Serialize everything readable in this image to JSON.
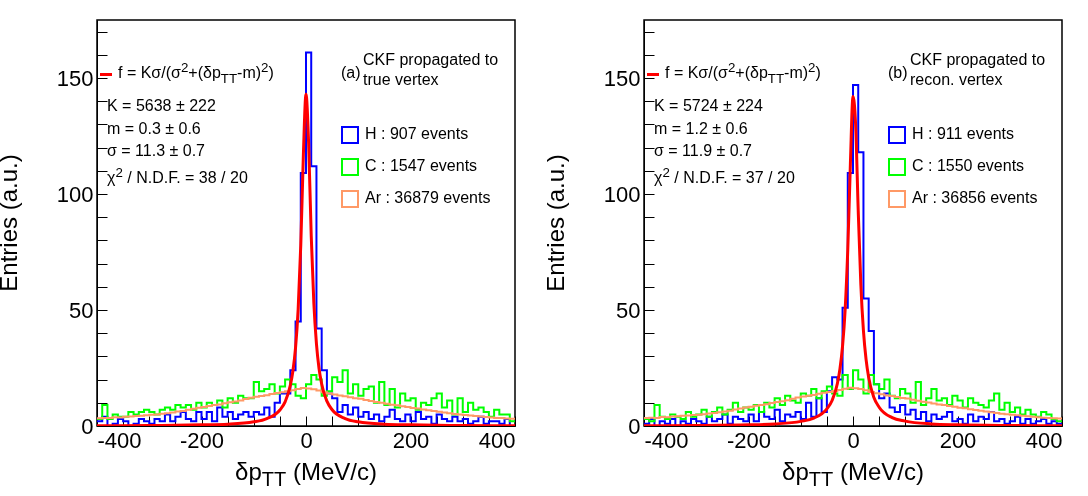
{
  "chart_data": [
    {
      "type": "histogram",
      "xlabel": "δp$_{TT}$ (MeV/c)",
      "ylabel": "Entries (a.u.)",
      "xlim": [
        -400,
        400
      ],
      "ylim": [
        0,
        175
      ],
      "xticks": [
        -400,
        {
          "value": -350,
          "label": null
        },
        {
          "value": -300,
          "label": null
        },
        {
          "value": -250,
          "label": null
        },
        -200,
        {
          "value": -150,
          "label": null
        },
        {
          "value": -100,
          "label": null
        },
        {
          "value": -50,
          "label": null
        },
        0,
        {
          "value": 50,
          "label": null
        },
        {
          "value": 100,
          "label": null
        },
        {
          "value": 150,
          "label": null
        },
        200,
        {
          "value": 250,
          "label": null
        },
        {
          "value": 300,
          "label": null
        },
        {
          "value": 350,
          "label": null
        },
        400
      ],
      "yticks": [
        0,
        {
          "value": 10,
          "label": null
        },
        {
          "value": 20,
          "label": null
        },
        {
          "value": 30,
          "label": null
        },
        {
          "value": 40,
          "label": null
        },
        50,
        {
          "value": 60,
          "label": null
        },
        {
          "value": 70,
          "label": null
        },
        {
          "value": 80,
          "label": null
        },
        {
          "value": 90,
          "label": null
        },
        100,
        {
          "value": 110,
          "label": null
        },
        {
          "value": 120,
          "label": null
        },
        {
          "value": 130,
          "label": null
        },
        {
          "value": 140,
          "label": null
        },
        150,
        {
          "value": 160,
          "label": null
        },
        {
          "value": 170,
          "label": null
        }
      ],
      "bins": [
        -400,
        -390,
        -380,
        -370,
        -360,
        -350,
        -340,
        -330,
        -320,
        -310,
        -300,
        -290,
        -280,
        -270,
        -260,
        -250,
        -240,
        -230,
        -220,
        -210,
        -200,
        -190,
        -180,
        -170,
        -160,
        -150,
        -140,
        -130,
        -120,
        -110,
        -100,
        -90,
        -80,
        -70,
        -60,
        -50,
        -40,
        -30,
        -20,
        -10,
        0,
        10,
        20,
        30,
        40,
        50,
        60,
        70,
        80,
        90,
        100,
        110,
        120,
        130,
        140,
        150,
        160,
        170,
        180,
        190,
        200,
        210,
        220,
        230,
        240,
        250,
        260,
        270,
        280,
        290,
        300,
        310,
        320,
        330,
        340,
        350,
        360,
        370,
        380,
        390,
        400
      ],
      "legend": "top right",
      "annotations": [
        "K = 5638 ± 222",
        "m = 0.3 ± 0.6",
        "σ = 11.3 ± 0.7",
        "χ$^{2}$ / N.D.F. = 38 / 20",
        "(a)",
        "CKF propagated to true vertex"
      ],
      "series": [
        {
          "name": "H : 907 events",
          "color": "#0000ff",
          "values": [
            2,
            4,
            0,
            1,
            3,
            2,
            0,
            1,
            3,
            2,
            1,
            3,
            2,
            5,
            2,
            4,
            6,
            3,
            2,
            6,
            3,
            6,
            2,
            8,
            4,
            6,
            3,
            5,
            6,
            4,
            6,
            5,
            8,
            4,
            10,
            14,
            14,
            24,
            45,
            109,
            161,
            112,
            42,
            24,
            14,
            12,
            6,
            9,
            5,
            8,
            4,
            6,
            3,
            5,
            2,
            4,
            7,
            3,
            2,
            5,
            2,
            6,
            3,
            4,
            1,
            5,
            3,
            2,
            4,
            2,
            3,
            1,
            2,
            4,
            1,
            2,
            2,
            1,
            3,
            0
          ]
        },
        {
          "name": "C : 1547 events",
          "color": "#00ff00",
          "values": [
            3,
            9,
            3,
            5,
            4,
            4,
            6,
            5,
            6,
            7,
            6,
            5,
            7,
            8,
            7,
            9,
            8,
            9,
            7,
            10,
            8,
            10,
            9,
            11,
            8,
            12,
            10,
            13,
            12,
            12,
            19,
            15,
            16,
            18,
            14,
            17,
            20,
            18,
            13,
            12,
            18,
            22,
            20,
            13,
            15,
            21,
            19,
            24,
            14,
            18,
            13,
            16,
            17,
            10,
            19,
            9,
            16,
            8,
            14,
            11,
            12,
            7,
            10,
            9,
            12,
            14,
            8,
            11,
            5,
            12,
            6,
            10,
            7,
            8,
            6,
            4,
            7,
            5,
            5,
            2
          ]
        },
        {
          "name": "Ar : 36879 events",
          "color": "#ff9966",
          "values": [
            3.3,
            3.5,
            3.4,
            3.8,
            3.7,
            4.0,
            4.1,
            4.3,
            4.4,
            4.6,
            4.8,
            5.0,
            5.3,
            5.5,
            5.8,
            6.2,
            6.5,
            7.0,
            7.4,
            7.9,
            8.2,
            8.6,
            9.0,
            9.3,
            9.8,
            10.2,
            10.6,
            11.0,
            11.6,
            12.2,
            12.6,
            12.9,
            13.3,
            13.8,
            14.2,
            14.6,
            15.0,
            15.4,
            16.0,
            16.4,
            16.2,
            15.8,
            15.3,
            14.6,
            14.0,
            13.6,
            13.1,
            12.8,
            12.4,
            12.0,
            11.7,
            11.2,
            10.8,
            10.3,
            10.0,
            9.6,
            9.2,
            8.9,
            8.5,
            8.2,
            7.8,
            7.5,
            7.1,
            6.8,
            6.5,
            6.1,
            5.8,
            5.5,
            5.2,
            5.0,
            4.7,
            4.5,
            4.3,
            4.1,
            3.9,
            3.7,
            3.5,
            3.4,
            3.2,
            3.1
          ]
        },
        {
          "name": "f = Kσ/(σ$^{2}$+(δp$_{TT}$-m)$^{2}$)",
          "type": "line",
          "color": "#ff0000",
          "x": [
            -400,
            -300,
            -200,
            -150,
            -100,
            -75,
            -50,
            -40,
            -30,
            -25,
            -20,
            -15,
            -10,
            -5,
            0,
            5,
            10,
            15,
            20,
            25,
            30,
            40,
            50,
            75,
            100,
            150,
            200,
            300,
            400
          ],
          "values": [
            0.1,
            0.2,
            0.5,
            0.8,
            1.8,
            3.2,
            6.9,
            10.4,
            17.5,
            23.8,
            33.8,
            50.4,
            78,
            117,
            143,
            122,
            82,
            53,
            35.4,
            24.7,
            18.1,
            10.7,
            7,
            3.2,
            1.8,
            0.8,
            0.5,
            0.2,
            0.1
          ]
        }
      ]
    },
    {
      "type": "histogram",
      "xlabel": "δp$_{TT}$ (MeV/c)",
      "ylabel": "Entries (a.u.)",
      "xlim": [
        -400,
        400
      ],
      "ylim": [
        0,
        175
      ],
      "xticks": [
        -400,
        {
          "value": -350,
          "label": null
        },
        {
          "value": -300,
          "label": null
        },
        {
          "value": -250,
          "label": null
        },
        -200,
        {
          "value": -150,
          "label": null
        },
        {
          "value": -100,
          "label": null
        },
        {
          "value": -50,
          "label": null
        },
        0,
        {
          "value": 50,
          "label": null
        },
        {
          "value": 100,
          "label": null
        },
        {
          "value": 150,
          "label": null
        },
        200,
        {
          "value": 250,
          "label": null
        },
        {
          "value": 300,
          "label": null
        },
        {
          "value": 350,
          "label": null
        },
        400
      ],
      "yticks": [
        0,
        {
          "value": 10,
          "label": null
        },
        {
          "value": 20,
          "label": null
        },
        {
          "value": 30,
          "label": null
        },
        {
          "value": 40,
          "label": null
        },
        50,
        {
          "value": 60,
          "label": null
        },
        {
          "value": 70,
          "label": null
        },
        {
          "value": 80,
          "label": null
        },
        {
          "value": 90,
          "label": null
        },
        100,
        {
          "value": 110,
          "label": null
        },
        {
          "value": 120,
          "label": null
        },
        {
          "value": 130,
          "label": null
        },
        {
          "value": 140,
          "label": null
        },
        150,
        {
          "value": 160,
          "label": null
        },
        {
          "value": 170,
          "label": null
        }
      ],
      "bins": [
        -400,
        -390,
        -380,
        -370,
        -360,
        -350,
        -340,
        -330,
        -320,
        -310,
        -300,
        -290,
        -280,
        -270,
        -260,
        -250,
        -240,
        -230,
        -220,
        -210,
        -200,
        -190,
        -180,
        -170,
        -160,
        -150,
        -140,
        -130,
        -120,
        -110,
        -100,
        -90,
        -80,
        -70,
        -60,
        -50,
        -40,
        -30,
        -20,
        -10,
        0,
        10,
        20,
        30,
        40,
        50,
        60,
        70,
        80,
        90,
        100,
        110,
        120,
        130,
        140,
        150,
        160,
        170,
        180,
        190,
        200,
        210,
        220,
        230,
        240,
        250,
        260,
        270,
        280,
        290,
        300,
        310,
        320,
        330,
        340,
        350,
        360,
        370,
        380,
        390,
        400
      ],
      "legend": "top right",
      "annotations": [
        "K = 5724 ± 224",
        "m = 1.2 ± 0.6",
        "σ = 11.9 ± 0.7",
        "χ$^{2}$ / N.D.F. = 37 / 20",
        "(b)",
        "CKF propagated to recon. vertex"
      ],
      "series": [
        {
          "name": "H : 911 events",
          "color": "#0000ff",
          "values": [
            1,
            3,
            0,
            2,
            1,
            3,
            0,
            2,
            1,
            3,
            2,
            1,
            4,
            2,
            3,
            5,
            1,
            4,
            3,
            2,
            5,
            2,
            6,
            4,
            3,
            7,
            2,
            5,
            4,
            6,
            3,
            10,
            4,
            12,
            6,
            15,
            21,
            20,
            51,
            109,
            147,
            118,
            55,
            41,
            18,
            12,
            14,
            8,
            6,
            9,
            5,
            7,
            3,
            6,
            2,
            5,
            3,
            4,
            6,
            2,
            3,
            1,
            5,
            2,
            4,
            3,
            6,
            2,
            3,
            1,
            2,
            4,
            1,
            3,
            1,
            2,
            3,
            1,
            2,
            1
          ]
        },
        {
          "name": "C : 1550 events",
          "color": "#00ff00",
          "values": [
            3,
            2,
            9,
            4,
            3,
            5,
            4,
            3,
            6,
            4,
            5,
            7,
            4,
            6,
            8,
            5,
            7,
            10,
            6,
            8,
            7,
            9,
            6,
            10,
            8,
            12,
            9,
            13,
            11,
            10,
            14,
            13,
            16,
            12,
            15,
            17,
            14,
            13,
            22,
            16,
            24,
            20,
            14,
            22,
            18,
            16,
            20,
            13,
            12,
            16,
            14,
            10,
            19,
            9,
            12,
            16,
            11,
            12,
            9,
            13,
            11,
            8,
            12,
            10,
            9,
            8,
            11,
            14,
            7,
            10,
            6,
            8,
            5,
            7,
            5,
            4,
            6,
            5,
            3,
            2
          ]
        },
        {
          "name": "Ar : 36856 events",
          "color": "#ff9966",
          "values": [
            3.4,
            3.6,
            3.5,
            3.9,
            3.8,
            4.1,
            4.2,
            4.4,
            4.5,
            4.7,
            4.9,
            5.1,
            5.4,
            5.6,
            5.9,
            6.3,
            6.6,
            7.1,
            7.5,
            8.0,
            8.3,
            8.7,
            9.1,
            9.4,
            9.9,
            10.3,
            10.7,
            11.1,
            11.7,
            12.3,
            12.7,
            13.0,
            13.4,
            13.9,
            14.3,
            14.7,
            15.1,
            15.5,
            16.1,
            16.5,
            16.3,
            15.9,
            15.4,
            14.7,
            14.1,
            13.7,
            13.2,
            12.9,
            12.5,
            12.1,
            11.8,
            11.3,
            10.9,
            10.4,
            10.1,
            9.7,
            9.3,
            9.0,
            8.6,
            8.3,
            7.9,
            7.6,
            7.2,
            6.9,
            6.6,
            6.2,
            5.9,
            5.6,
            5.3,
            5.1,
            4.8,
            4.6,
            4.4,
            4.2,
            4.0,
            3.8,
            3.6,
            3.5,
            3.3,
            3.2
          ]
        },
        {
          "name": "f = Kσ/(σ$^{2}$+(δp$_{TT}$-m)$^{2}$)",
          "type": "line",
          "color": "#ff0000",
          "x": [
            -400,
            -300,
            -200,
            -150,
            -100,
            -75,
            -50,
            -40,
            -30,
            -25,
            -20,
            -15,
            -10,
            -5,
            0,
            5,
            10,
            15,
            20,
            25,
            30,
            40,
            50,
            75,
            100,
            150,
            200,
            300,
            400
          ],
          "values": [
            0.1,
            0.2,
            0.5,
            0.9,
            2,
            3.4,
            7.4,
            11,
            18.2,
            24.6,
            34.4,
            50.3,
            76,
            113,
            142,
            130,
            92.8,
            61,
            41,
            28.7,
            20.9,
            12.3,
            8.1,
            3.6,
            2.1,
            0.9,
            0.5,
            0.2,
            0.1
          ]
        }
      ]
    }
  ]
}
